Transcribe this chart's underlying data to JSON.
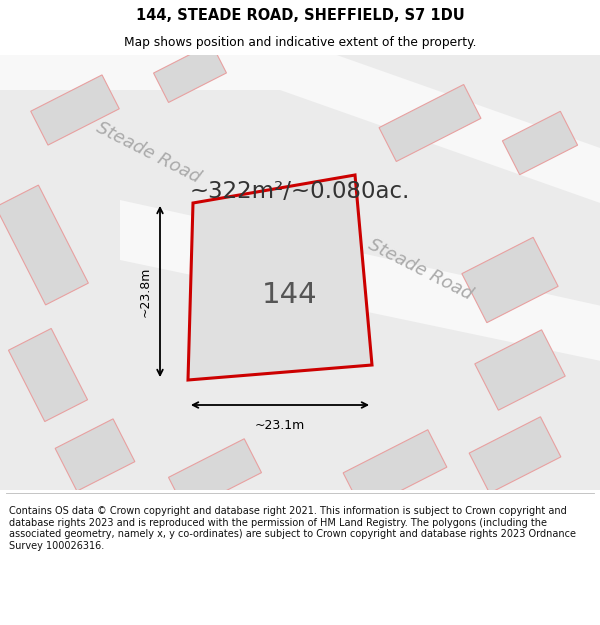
{
  "title": "144, STEADE ROAD, SHEFFIELD, S7 1DU",
  "subtitle": "Map shows position and indicative extent of the property.",
  "area_text": "~322m²/~0.080ac.",
  "label_144": "144",
  "dim_horiz": "~23.1m",
  "dim_vert": "~23.8m",
  "road_label_1": "Steade Road",
  "road_label_2": "Steade Road",
  "footer": "Contains OS data © Crown copyright and database right 2021. This information is subject to Crown copyright and database rights 2023 and is reproduced with the permission of HM Land Registry. The polygons (including the associated geometry, namely x, y co-ordinates) are subject to Crown copyright and database rights 2023 Ordnance Survey 100026316.",
  "bg_color": "#ebebeb",
  "road_color": "#f8f8f8",
  "building_fill": "#d8d8d8",
  "building_edge_light": "#e8a0a0",
  "main_plot_edge": "#cc0000",
  "main_plot_fill": "#e0e0e0",
  "footer_bg": "#ffffff",
  "title_color": "#000000",
  "gray_text": "#aaaaaa"
}
